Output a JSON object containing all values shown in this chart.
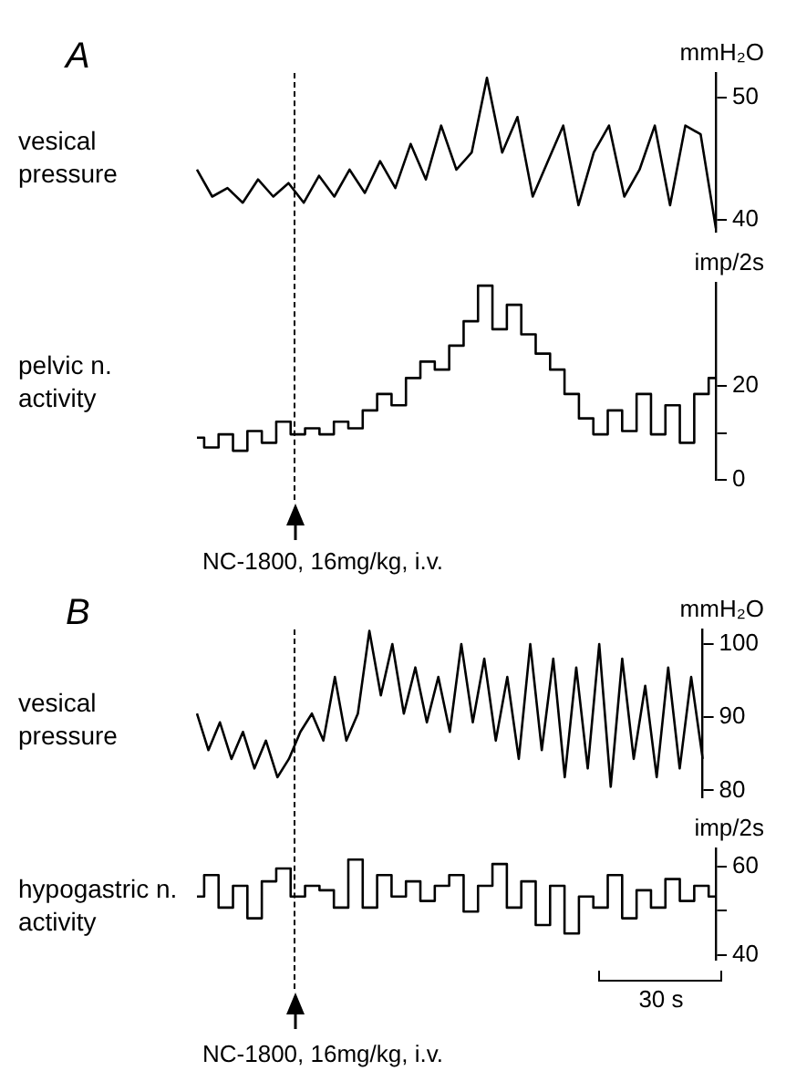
{
  "chart_data": [
    {
      "type": "line",
      "title": "vesical pressure",
      "ylabel": "mmH₂O",
      "annotations": [
        "A"
      ],
      "color": "#000000",
      "tick_labels": "y",
      "ylim": [
        39,
        52
      ],
      "yticks": [
        40,
        50
      ],
      "categories": [
        null,
        null,
        null,
        null,
        null,
        null,
        null,
        null,
        null,
        null,
        null,
        null,
        null,
        null,
        null,
        null,
        null,
        null,
        null,
        null,
        null,
        null,
        null,
        null,
        null,
        null,
        null,
        null,
        null,
        null,
        null,
        null,
        null,
        null,
        null
      ],
      "values": [
        44.1,
        41.9,
        42.6,
        41.4,
        43.3,
        41.9,
        43.0,
        41.4,
        43.6,
        41.9,
        44.1,
        42.2,
        44.8,
        42.6,
        46.2,
        43.3,
        47.7,
        44.1,
        45.5,
        51.6,
        45.5,
        48.4,
        41.9,
        44.8,
        47.7,
        41.2,
        45.5,
        47.7,
        41.9,
        44.1,
        47.7,
        41.2,
        47.7,
        47.0,
        39.3
      ]
    },
    {
      "type": "step",
      "title": "pelvic n. activity",
      "ylabel": "imp/2s",
      "annotations": [
        "NC-1800, 16mg/kg, i.v."
      ],
      "color": "#000000",
      "tick_labels": "y",
      "ylim": [
        0,
        42
      ],
      "yticks": [
        0,
        {
          "value": 10,
          "label": null
        },
        20
      ],
      "categories": [
        null,
        null,
        null,
        null,
        null,
        null,
        null,
        null,
        null,
        null,
        null,
        null,
        null,
        null,
        null,
        null,
        null,
        null,
        null,
        null,
        null,
        null,
        null,
        null,
        null,
        null,
        null,
        null,
        null,
        null,
        null,
        null,
        null,
        null,
        null,
        null,
        null
      ],
      "values": [
        9,
        6.9,
        9.7,
        6.2,
        10.4,
        7.9,
        12.4,
        9.7,
        11,
        9.7,
        12.4,
        11,
        14.8,
        18.3,
        15.9,
        21.7,
        25.2,
        23.5,
        28.6,
        33.8,
        41.4,
        32.1,
        37.3,
        31,
        26.9,
        23.5,
        18.3,
        13.1,
        9.7,
        14.8,
        10.4,
        18.3,
        9.7,
        15.9,
        7.9,
        18.3,
        21.7
      ]
    },
    {
      "type": "line",
      "title": "vesical pressure",
      "ylabel": "mmH₂O",
      "annotations": [
        "B"
      ],
      "color": "#000000",
      "tick_labels": "y",
      "ylim": [
        79,
        102
      ],
      "yticks": [
        80,
        90,
        100
      ],
      "categories": [
        null,
        null,
        null,
        null,
        null,
        null,
        null,
        null,
        null,
        null,
        null,
        null,
        null,
        null,
        null,
        null,
        null,
        null,
        null,
        null,
        null,
        null,
        null,
        null,
        null,
        null,
        null,
        null,
        null,
        null,
        null,
        null,
        null,
        null,
        null,
        null,
        null,
        null,
        null,
        null,
        null,
        null,
        null,
        null,
        null
      ],
      "values": [
        90.5,
        85.5,
        89.3,
        84.3,
        88,
        83,
        86.8,
        81.8,
        84.3,
        88,
        90.5,
        86.8,
        95.5,
        86.8,
        90.5,
        101.8,
        93,
        100,
        90.5,
        96.8,
        89.3,
        95.5,
        88,
        100,
        89.3,
        98,
        86.8,
        95.5,
        84.3,
        100,
        85.5,
        98,
        81.8,
        96.8,
        83,
        100,
        80.5,
        98,
        84.3,
        94.3,
        81.8,
        96.8,
        83,
        95.5,
        84.3
      ]
    },
    {
      "type": "step",
      "title": "hypogastric n. activity",
      "ylabel": "imp/2s",
      "annotations": [
        "30 s",
        "NC-1800, 16mg/kg, i.v."
      ],
      "color": "#000000",
      "tick_labels": "y",
      "ylim": [
        39,
        64
      ],
      "yticks": [
        40,
        {
          "value": 50,
          "label": null
        },
        60
      ],
      "categories": [
        null,
        null,
        null,
        null,
        null,
        null,
        null,
        null,
        null,
        null,
        null,
        null,
        null,
        null,
        null,
        null,
        null,
        null,
        null,
        null,
        null,
        null,
        null,
        null,
        null,
        null,
        null,
        null,
        null,
        null,
        null,
        null,
        null,
        null,
        null,
        null,
        null
      ],
      "values": [
        53.2,
        58,
        50.7,
        55.6,
        48.3,
        56.6,
        59.5,
        53.2,
        55.6,
        54.6,
        50.7,
        61.5,
        50.7,
        58,
        53.2,
        56.6,
        52.2,
        55.6,
        58,
        49.8,
        55.6,
        60.5,
        50.7,
        56.6,
        46.8,
        55.6,
        44.9,
        53.2,
        50.7,
        58,
        48.3,
        54.6,
        50.7,
        57.1,
        52.2,
        55.6,
        53.2
      ]
    }
  ]
}
